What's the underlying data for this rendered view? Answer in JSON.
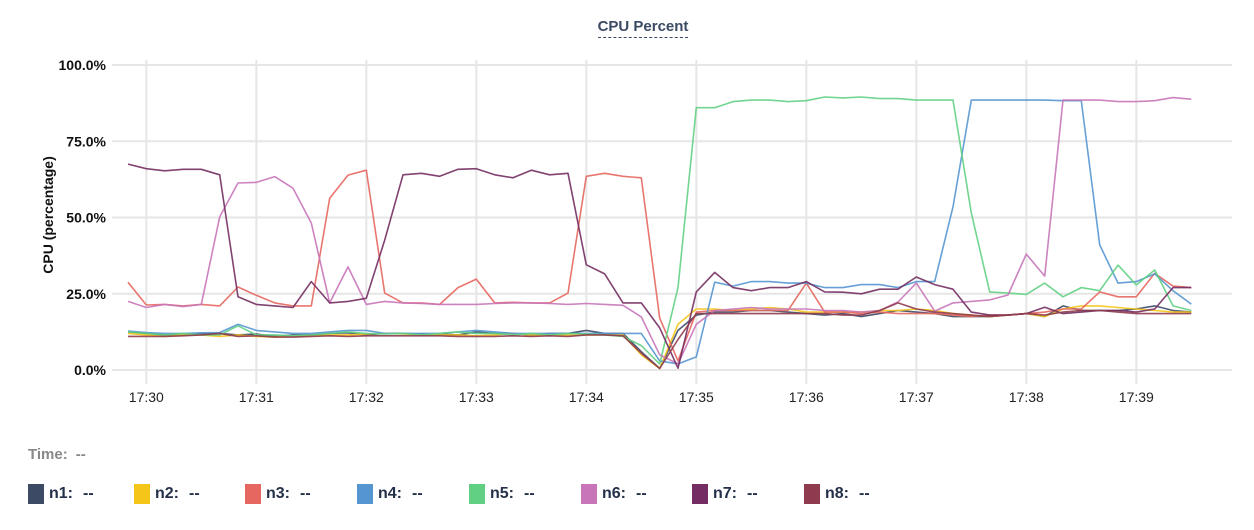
{
  "title": "CPU Percent",
  "time_label": "Time:",
  "time_value": "--",
  "chart_data": {
    "type": "line",
    "title": "CPU Percent",
    "xlabel": "",
    "ylabel": "CPU (percentage)",
    "ylim": [
      0,
      100
    ],
    "yticks": [
      "0.0%",
      "25.0%",
      "50.0%",
      "75.0%",
      "100.0%"
    ],
    "ytick_values": [
      0,
      25,
      50,
      75,
      100
    ],
    "xticks": [
      "17:30",
      "17:31",
      "17:32",
      "17:33",
      "17:34",
      "17:35",
      "17:36",
      "17:37",
      "17:38",
      "17:39"
    ],
    "grid": true,
    "legend": "bottom",
    "x": [
      "17:29:50",
      "17:30:00",
      "17:30:10",
      "17:30:20",
      "17:30:30",
      "17:30:40",
      "17:30:50",
      "17:31:00",
      "17:31:10",
      "17:31:20",
      "17:31:30",
      "17:31:40",
      "17:31:50",
      "17:32:00",
      "17:32:10",
      "17:32:20",
      "17:32:30",
      "17:32:40",
      "17:32:50",
      "17:33:00",
      "17:33:10",
      "17:33:20",
      "17:33:30",
      "17:33:40",
      "17:33:50",
      "17:34:00",
      "17:34:10",
      "17:34:20",
      "17:34:30",
      "17:34:40",
      "17:34:50",
      "17:35:00",
      "17:35:10",
      "17:35:20",
      "17:35:30",
      "17:35:40",
      "17:35:50",
      "17:36:00",
      "17:36:10",
      "17:36:20",
      "17:36:30",
      "17:36:40",
      "17:36:50",
      "17:37:00",
      "17:37:10",
      "17:37:20",
      "17:37:30",
      "17:37:40",
      "17:37:50",
      "17:38:00",
      "17:38:10",
      "17:38:20",
      "17:38:30",
      "17:38:40",
      "17:38:50",
      "17:39:00",
      "17:39:10",
      "17:39:20",
      "17:39:30"
    ],
    "series": [
      {
        "name": "n1",
        "color": "#3d4a66",
        "values": [
          12.5,
          12,
          11.5,
          11.5,
          11.8,
          12,
          11.5,
          11.8,
          11,
          11.5,
          11.5,
          12,
          12.2,
          11.5,
          12,
          12,
          11.8,
          11.8,
          11.5,
          12.5,
          12,
          12,
          11.5,
          12,
          12,
          13,
          12,
          12,
          6,
          0.5,
          13,
          18,
          19,
          19,
          19.5,
          19.5,
          19,
          18.5,
          18,
          18.5,
          17.5,
          18.5,
          19.5,
          19,
          18.5,
          17.5,
          17.5,
          17.5,
          18,
          18.5,
          17.5,
          21,
          19.5,
          19.5,
          19.5,
          20,
          21,
          19.5,
          19
        ]
      },
      {
        "name": "n2",
        "color": "#f5c518",
        "values": [
          12,
          11.5,
          11,
          11.5,
          11.5,
          11,
          11.5,
          11,
          10.8,
          11,
          11.2,
          11.5,
          11.5,
          11.8,
          12,
          11.8,
          11.5,
          11.5,
          11.5,
          11.2,
          11.5,
          12,
          11.5,
          11.5,
          11.5,
          11.5,
          11.5,
          11.5,
          5,
          0.5,
          15,
          20,
          20,
          19.5,
          20,
          20.5,
          20,
          19,
          19,
          19,
          19,
          19.5,
          19.5,
          20,
          19.5,
          18.5,
          18,
          17.5,
          18,
          18.5,
          17.5,
          20,
          21,
          21,
          20.5,
          20,
          19.5,
          19,
          19
        ]
      },
      {
        "name": "n3",
        "color": "#e5675f",
        "values": [
          28.8,
          21.3,
          21.5,
          21,
          21.5,
          21,
          27.2,
          24.5,
          22,
          21,
          21,
          56.3,
          63.9,
          65.5,
          25.2,
          22,
          22,
          21.5,
          27,
          29.8,
          22,
          22.2,
          22,
          22,
          25.2,
          63.5,
          64.5,
          63.5,
          63,
          17,
          3,
          19,
          19.5,
          19.5,
          19.5,
          19.5,
          19.5,
          28.5,
          19,
          19,
          18.5,
          19,
          18.5,
          18.5,
          18.5,
          18,
          17.5,
          18,
          18,
          18.5,
          19,
          20,
          20,
          25.6,
          24,
          24,
          31.7,
          27.5,
          27
        ]
      },
      {
        "name": "n4",
        "color": "#5596d0",
        "values": [
          12.8,
          12.3,
          12,
          12,
          12.2,
          12.3,
          15,
          13,
          12.5,
          12,
          12,
          12.5,
          13,
          13,
          12,
          12,
          12,
          12,
          12.5,
          13,
          12.5,
          12,
          12,
          12,
          12,
          12,
          12,
          12,
          12,
          3,
          2,
          4.3,
          28.8,
          27.5,
          29,
          29,
          28.5,
          28.5,
          27,
          27,
          28,
          28,
          27,
          29,
          29,
          53.5,
          88.5,
          88.5,
          88.5,
          88.5,
          88.5,
          88.3,
          88.3,
          41,
          28.5,
          29,
          31.5,
          26,
          21.6
        ]
      },
      {
        "name": "n5",
        "color": "#62d083",
        "values": [
          12.5,
          12,
          11.5,
          12,
          11.5,
          11.5,
          14.5,
          11.5,
          11.5,
          11.2,
          11.5,
          12,
          12.5,
          12,
          11.8,
          12,
          11.5,
          12,
          12.5,
          12,
          12,
          11.5,
          12,
          11.5,
          12,
          11.8,
          11.5,
          11,
          8,
          2,
          27,
          86,
          86,
          88,
          88.5,
          88.5,
          88,
          88.3,
          89.5,
          89.2,
          89.5,
          89,
          89,
          88.5,
          88.5,
          88.5,
          51.5,
          25.6,
          25.2,
          24.8,
          28.5,
          24,
          27,
          26,
          34.4,
          27.9,
          32.8,
          21,
          19.5
        ]
      },
      {
        "name": "n6",
        "color": "#c875b9",
        "values": [
          22.5,
          20.5,
          21.5,
          20.8,
          21.5,
          50.2,
          61.3,
          61.5,
          63.4,
          59.6,
          48.2,
          22,
          33.8,
          21.5,
          22.5,
          22,
          21.8,
          21.5,
          21.5,
          21.5,
          21.8,
          22,
          22,
          21.8,
          21.5,
          21.8,
          21.5,
          21.2,
          17.4,
          5,
          2,
          15,
          19.5,
          20,
          20.5,
          20,
          20,
          20,
          19.5,
          19.5,
          19,
          19.5,
          22.3,
          28.5,
          19.3,
          22,
          22.5,
          23,
          24.6,
          38,
          30.8,
          88.5,
          88.5,
          88.5,
          88,
          88,
          88.3,
          89.3,
          88.8
        ]
      },
      {
        "name": "n7",
        "color": "#742d62",
        "values": [
          67.5,
          66,
          65.3,
          65.8,
          65.8,
          64,
          24,
          21.5,
          21,
          20.5,
          29,
          22,
          22.5,
          23.5,
          42.6,
          64,
          64.5,
          63.5,
          65.8,
          66,
          64,
          63,
          65.5,
          64,
          64.5,
          34.5,
          31.5,
          22,
          22,
          13.8,
          0.6,
          25.6,
          32,
          27,
          26,
          27,
          27,
          29,
          25.6,
          25.5,
          25,
          26.5,
          26.5,
          30.5,
          28,
          26.5,
          19,
          18,
          18,
          18.5,
          20.6,
          18.5,
          19,
          19.5,
          19.5,
          19,
          20,
          27,
          27
        ]
      },
      {
        "name": "n8",
        "color": "#8e3b4d",
        "values": [
          11,
          11,
          11,
          11.2,
          11.5,
          12,
          11,
          11.2,
          10.8,
          10.8,
          11,
          11.2,
          11,
          11.2,
          11.2,
          11.2,
          11.2,
          11.2,
          11,
          11,
          11,
          11.2,
          11,
          11.2,
          11,
          11.5,
          11.5,
          11.2,
          5.5,
          0.5,
          10,
          18.5,
          18.5,
          18.5,
          18.5,
          18.5,
          18.5,
          18.5,
          18.5,
          18,
          18,
          19.5,
          22,
          20,
          19,
          18.5,
          18,
          17.5,
          18,
          18.5,
          18,
          19,
          19.5,
          19.5,
          19,
          18.5,
          18.5,
          18.5,
          18.5
        ]
      }
    ]
  },
  "legend": [
    {
      "label": "n1:",
      "value": "--"
    },
    {
      "label": "n2:",
      "value": "--"
    },
    {
      "label": "n3:",
      "value": "--"
    },
    {
      "label": "n4:",
      "value": "--"
    },
    {
      "label": "n5:",
      "value": "--"
    },
    {
      "label": "n6:",
      "value": "--"
    },
    {
      "label": "n7:",
      "value": "--"
    },
    {
      "label": "n8:",
      "value": "--"
    }
  ]
}
